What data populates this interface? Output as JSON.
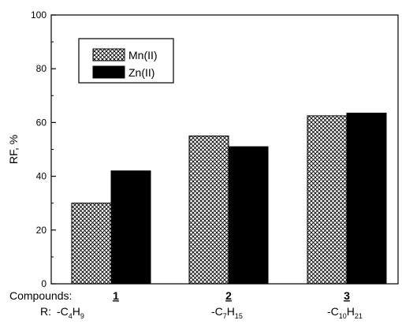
{
  "chart_data": {
    "type": "bar",
    "title": "",
    "xlabel": "",
    "ylabel": "RF, %",
    "ylim": [
      0,
      100
    ],
    "yticks": [
      0,
      20,
      40,
      60,
      80,
      100
    ],
    "grid": false,
    "legend_position": "top-left",
    "categories": [
      "1",
      "2",
      "3"
    ],
    "row_labels": {
      "compounds": "Compounds:",
      "r": "R:"
    },
    "substituents": [
      {
        "prefix": "-C",
        "sub1": "4",
        "mid": "H",
        "sub2": "9"
      },
      {
        "prefix": "-C",
        "sub1": "7",
        "mid": "H",
        "sub2": "15"
      },
      {
        "prefix": "-C",
        "sub1": "10",
        "mid": "H",
        "sub2": "21"
      }
    ],
    "series": [
      {
        "name": "Mn(II)",
        "values": [
          30,
          55,
          62.5
        ],
        "fill": "crosshatch",
        "color": "#000000"
      },
      {
        "name": "Zn(II)",
        "values": [
          42,
          51,
          63.5
        ],
        "fill": "solid",
        "color": "#000000"
      }
    ]
  }
}
